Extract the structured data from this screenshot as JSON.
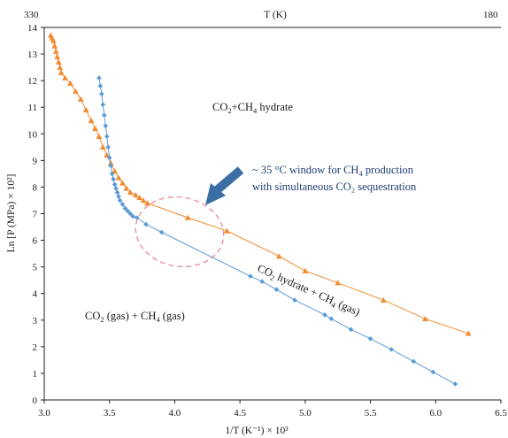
{
  "chart_data": {
    "type": "line",
    "xlabel": "1/T (K⁻¹) × 10³",
    "ylabel": "Ln [P (MPa) × 10²]",
    "top_axis_label": "T (K)",
    "top_axis_ticks": [
      "330",
      "180"
    ],
    "xlim": [
      3.0,
      6.5
    ],
    "ylim": [
      0,
      14
    ],
    "x_ticks": [
      "3.0",
      "3.5",
      "4.0",
      "4.5",
      "5.0",
      "5.5",
      "6.0",
      "6.5"
    ],
    "y_ticks": [
      "0",
      "1",
      "2",
      "3",
      "4",
      "5",
      "6",
      "7",
      "8",
      "9",
      "10",
      "11",
      "12",
      "13",
      "14"
    ],
    "grid": false,
    "colors": {
      "orange": "#f28a30",
      "blue": "#5b9bd5",
      "arrow": "#3a6ea5",
      "ellipse": "#e8899a"
    },
    "series": [
      {
        "color": "#f28a30",
        "marker": "triangle",
        "x": [
          3.05,
          3.06,
          3.07,
          3.08,
          3.09,
          3.1,
          3.11,
          3.12,
          3.13,
          3.16,
          3.2,
          3.24,
          3.28,
          3.32,
          3.36,
          3.39,
          3.42,
          3.45,
          3.48,
          3.51,
          3.54,
          3.57,
          3.6,
          3.63,
          3.66,
          3.7,
          3.73,
          3.76,
          3.79,
          4.1,
          4.4,
          4.8,
          5.0,
          5.25,
          5.6,
          5.92,
          6.25
        ],
        "y": [
          13.7,
          13.6,
          13.5,
          13.3,
          13.1,
          12.9,
          12.7,
          12.5,
          12.3,
          12.1,
          11.9,
          11.6,
          11.3,
          10.9,
          10.5,
          10.2,
          9.9,
          9.5,
          9.2,
          8.9,
          8.6,
          8.35,
          8.15,
          7.95,
          7.8,
          7.7,
          7.6,
          7.5,
          7.4,
          6.85,
          6.35,
          5.4,
          4.85,
          4.4,
          3.75,
          3.05,
          2.5
        ]
      },
      {
        "color": "#5b9bd5",
        "marker": "diamond",
        "x": [
          3.42,
          3.43,
          3.44,
          3.45,
          3.46,
          3.47,
          3.48,
          3.49,
          3.5,
          3.51,
          3.52,
          3.53,
          3.54,
          3.55,
          3.56,
          3.57,
          3.58,
          3.6,
          3.62,
          3.64,
          3.66,
          3.68,
          3.71,
          3.78,
          3.9,
          4.58,
          4.67,
          4.78,
          4.92,
          5.15,
          5.2,
          5.35,
          5.5,
          5.66,
          5.83,
          5.98,
          6.15
        ],
        "y": [
          12.1,
          11.8,
          11.5,
          11.1,
          10.7,
          10.3,
          9.9,
          9.5,
          9.1,
          8.8,
          8.5,
          8.3,
          8.1,
          7.95,
          7.8,
          7.65,
          7.5,
          7.35,
          7.2,
          7.1,
          7.0,
          6.9,
          6.85,
          6.6,
          6.3,
          4.65,
          4.45,
          4.15,
          3.75,
          3.2,
          3.05,
          2.65,
          2.3,
          1.9,
          1.45,
          1.05,
          0.6
        ]
      }
    ],
    "annotations": {
      "hydrate_region": {
        "main": "CO",
        "sub1": "2",
        "mid": "+CH",
        "sub2": "4",
        "tail": " hydrate"
      },
      "gas_region": {
        "main": "CO",
        "sub1": "2",
        "mid": " (gas) + CH",
        "sub2": "4",
        "tail": " (gas)"
      },
      "blue_line": {
        "main": "CO",
        "sub1": "2",
        "mid": " hydrate + CH",
        "sub2": "4",
        "tail": " (gas)"
      },
      "window_line1": {
        "main": "~ 35 °C window for CH",
        "sub": "4",
        "tail": " production"
      },
      "window_line2": "with simultaneous CO₂ sequestration"
    }
  }
}
